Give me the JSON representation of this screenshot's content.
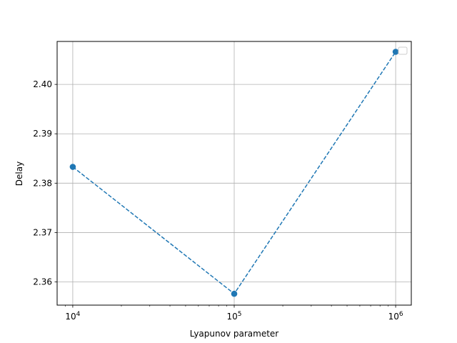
{
  "chart_data": {
    "type": "line",
    "title": "",
    "xlabel": "Lyapunov parameter",
    "ylabel": "Delay",
    "x_scale": "log",
    "xlim": [
      8000,
      1250000
    ],
    "ylim": [
      2.3553,
      2.4087
    ],
    "x_ticks": [
      10000,
      100000,
      1000000
    ],
    "x_tick_labels": [
      {
        "base": "10",
        "exp": "4"
      },
      {
        "base": "10",
        "exp": "5"
      },
      {
        "base": "10",
        "exp": "6"
      }
    ],
    "y_ticks": [
      2.36,
      2.37,
      2.38,
      2.39,
      2.4
    ],
    "y_tick_labels": [
      "2.36",
      "2.37",
      "2.38",
      "2.39",
      "2.40"
    ],
    "grid": true,
    "legend": "top-right (empty)",
    "series": [
      {
        "x": [
          10000,
          100000,
          1000000
        ],
        "y": [
          2.3833,
          2.3576,
          2.4066
        ],
        "color": "#1f77b4",
        "line_style": "dashed",
        "marker": "circle"
      }
    ]
  }
}
